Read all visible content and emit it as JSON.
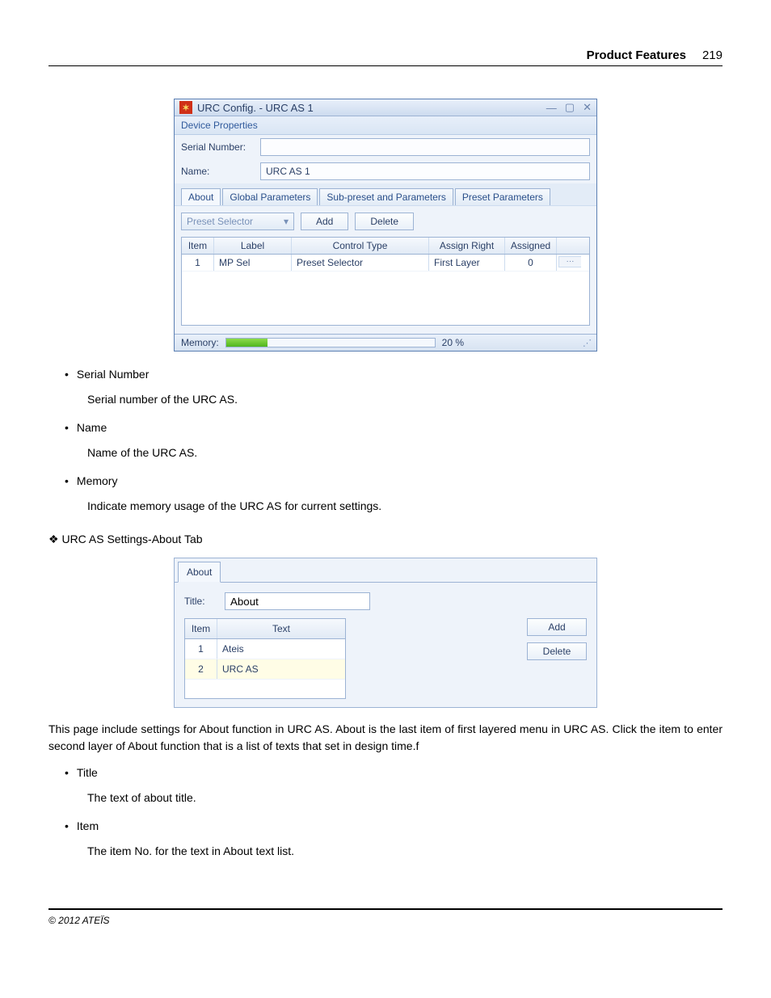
{
  "header": {
    "title": "Product Features",
    "page_number": "219"
  },
  "win1": {
    "title": "URC Config. - URC AS 1",
    "section_label": "Device Properties",
    "serial_label": "Serial Number:",
    "serial_value": "",
    "name_label": "Name:",
    "name_value": "URC AS 1",
    "tabs": {
      "about": "About",
      "global": "Global Parameters",
      "subpreset": "Sub-preset and Parameters",
      "preset": "Preset Parameters"
    },
    "dropdown_label": "Preset Selector",
    "btn_add": "Add",
    "btn_delete": "Delete",
    "grid": {
      "headers": {
        "item": "Item",
        "label": "Label",
        "ctype": "Control Type",
        "aright": "Assign Right",
        "assigned": "Assigned"
      },
      "row": {
        "item": "1",
        "label": "MP Sel",
        "ctype": "Preset Selector",
        "aright": "First Layer",
        "assigned": "0",
        "more": "···"
      }
    },
    "memory_label": "Memory:",
    "memory_pct_text": "20 %",
    "memory_pct": 20
  },
  "doc": {
    "b1_title": "Serial Number",
    "b1_desc": "Serial number of the URC AS.",
    "b2_title": "Name",
    "b2_desc": "Name of the URC AS.",
    "b3_title": "Memory",
    "b3_desc": "Indicate memory usage of the URC AS for current settings.",
    "heading2": "URC AS Settings-About Tab",
    "para1": "This page include settings for About function in URC AS. About is the last item of first layered menu in URC AS. Click the item to enter second layer of About function that is a list of texts that set in design time.f",
    "b4_title": "Title",
    "b4_desc": "The text of about title.",
    "b5_title": "Item",
    "b5_desc": "The item No. for the text in About text list."
  },
  "win2": {
    "tab_label": "About",
    "title_label": "Title:",
    "title_value": "About",
    "headers": {
      "item": "Item",
      "text": "Text"
    },
    "row1": {
      "item": "1",
      "text": "Ateis"
    },
    "row2": {
      "item": "2",
      "text": "URC AS"
    },
    "btn_add": "Add",
    "btn_delete": "Delete"
  },
  "footer": {
    "copyright": "© 2012 ATEÏS"
  },
  "colors": {
    "border": "#9cb3d4",
    "panel_bg": "#eef3fa",
    "accent_text": "#2a3f66",
    "progress_fill": "#4fb51d"
  }
}
